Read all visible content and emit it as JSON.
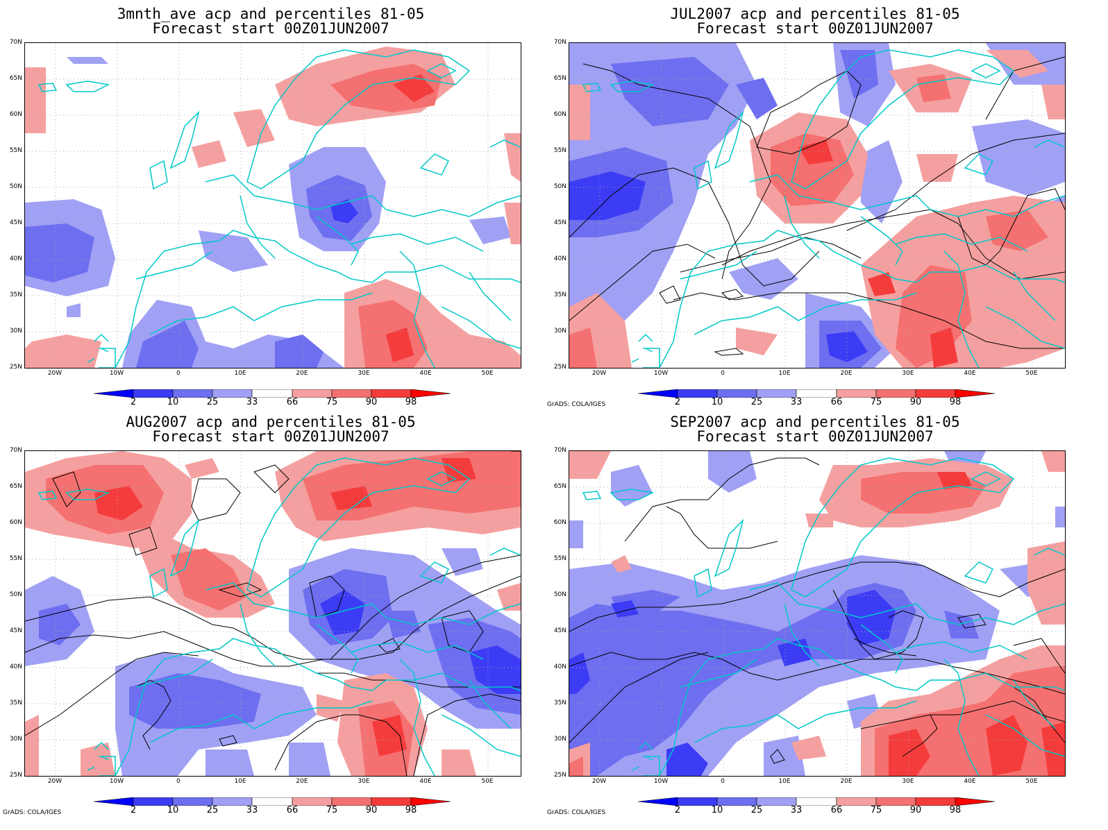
{
  "panels": [
    {
      "id": "p1",
      "title1": "3mnth_ave acp and percentiles 81-05",
      "title2": "Forecast start 00Z01JUN2007",
      "credit": ""
    },
    {
      "id": "p2",
      "title1": "JUL2007 acp and percentiles 81-05",
      "title2": "Forecast start 00Z01JUN2007",
      "credit": "GrADS: COLA/IGES"
    },
    {
      "id": "p3",
      "title1": "AUG2007 acp and percentiles 81-05",
      "title2": "Forecast start 00Z01JUN2007",
      "credit": "GrADS: COLA/IGES"
    },
    {
      "id": "p4",
      "title1": "SEP2007 acp and percentiles 81-05",
      "title2": "Forecast start 00Z01JUN2007",
      "credit": "GrADS: COLA/IGES"
    }
  ],
  "lat_labels": [
    "70N",
    "65N",
    "60N",
    "55N",
    "50N",
    "45N",
    "40N",
    "35N",
    "30N",
    "25N"
  ],
  "lon_labels": [
    "20W",
    "10W",
    "0",
    "10E",
    "20E",
    "30E",
    "40E",
    "50E"
  ],
  "colorbar": {
    "labels": [
      "2",
      "10",
      "25",
      "33",
      "66",
      "75",
      "90",
      "98"
    ],
    "colors": [
      "#0000ff",
      "#3c3cf5",
      "#6e6ef0",
      "#a0a0f5",
      "#ffffff",
      "#f5a0a0",
      "#f57070",
      "#f53c3c",
      "#ff0000"
    ]
  },
  "colors": {
    "coast": "#00c8c8",
    "contour": "#000000",
    "grid": "#aaaaaa"
  }
}
